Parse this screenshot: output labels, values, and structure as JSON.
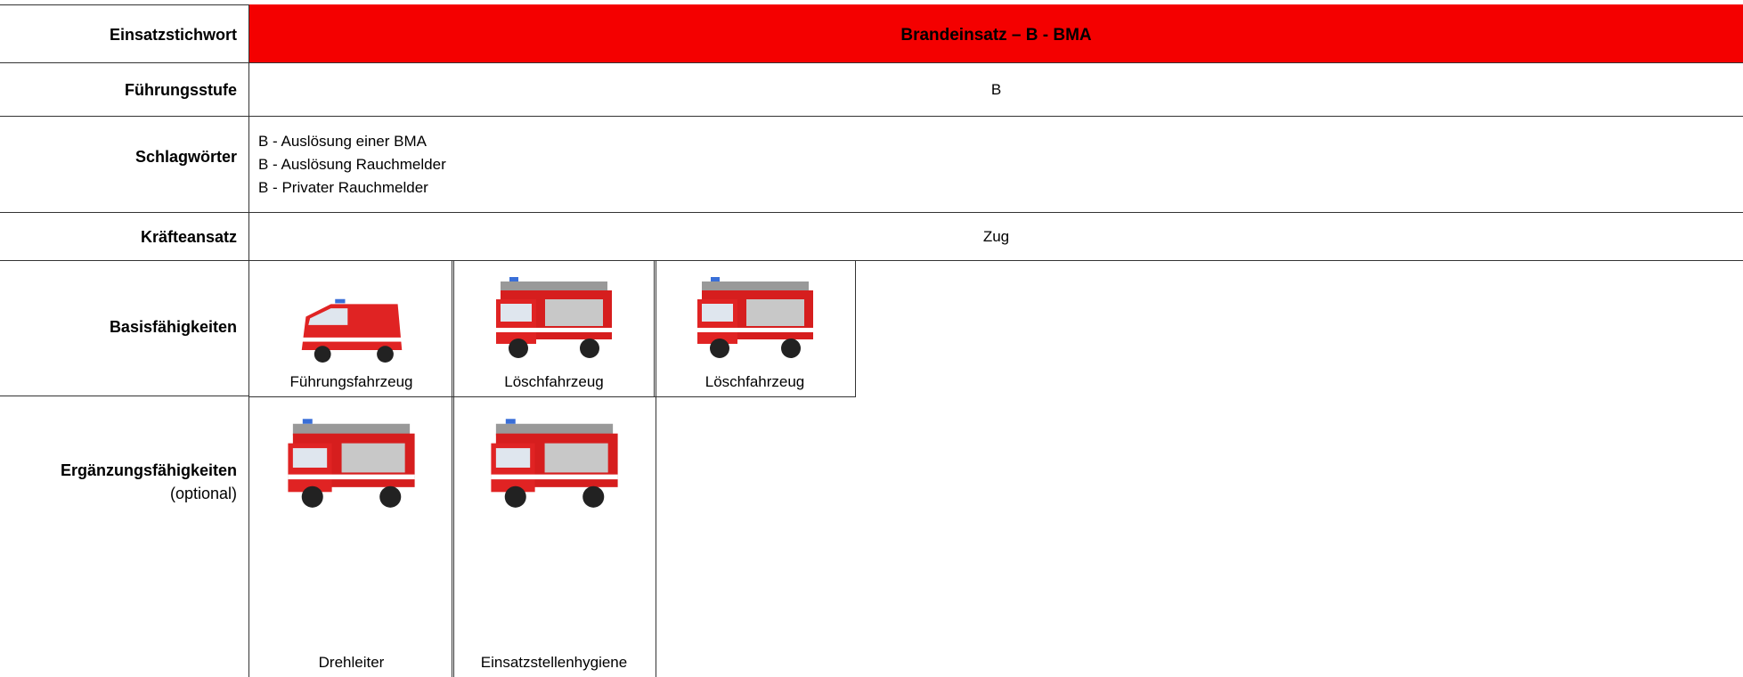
{
  "table": {
    "einsatzstichwort": {
      "label": "Einsatzstichwort",
      "value": "Brandeinsatz – B - BMA"
    },
    "fuehrungsstufe": {
      "label": "Führungsstufe",
      "value": "B"
    },
    "schlagwoerter": {
      "label": "Schlagwörter",
      "items": [
        "B - Auslösung einer BMA",
        "B - Auslösung Rauchmelder",
        "B - Privater Rauchmelder"
      ]
    },
    "kraefteansatz": {
      "label": "Kräfteansatz",
      "value": "Zug"
    },
    "basisfaehigkeiten": {
      "label": "Basisfähigkeiten",
      "vehicles": [
        "Führungsfahrzeug",
        "Löschfahrzeug",
        "Löschfahrzeug"
      ]
    },
    "ergaenzungsfaehigkeiten": {
      "label": "Ergänzungsfähigkeiten",
      "note": "(optional)",
      "vehicles": [
        "Drehleiter",
        "Einsatzstellenhygiene"
      ]
    }
  }
}
